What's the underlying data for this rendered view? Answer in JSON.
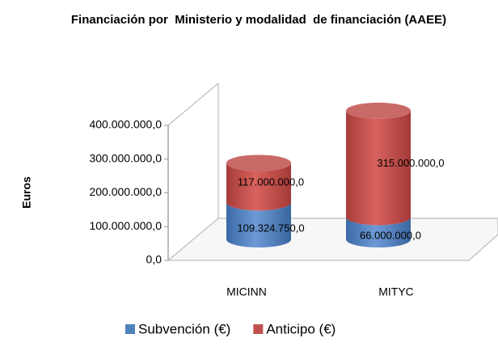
{
  "chart_data": {
    "type": "bar3d-stacked-cylinder",
    "title": "Financiación por  Ministerio y modalidad  de financiación (AAEE)",
    "y_label": "Euros",
    "categories": [
      "MICINN",
      "MITYC"
    ],
    "series": [
      {
        "name": "Subvención (€)",
        "color": "#4f81bd",
        "values": [
          109324750,
          66000000
        ],
        "value_labels": [
          "109.324.750,0",
          "66.000.000,0"
        ]
      },
      {
        "name": "Anticipo (€)",
        "color": "#c0504d",
        "values": [
          117000000,
          315000000
        ],
        "value_labels": [
          "117.000.000,0",
          "315.000.000,0"
        ]
      }
    ],
    "ylim": [
      0,
      400000000
    ],
    "yticks": [
      {
        "value": 0,
        "label": "0,0"
      },
      {
        "value": 100000000,
        "label": "100.000.000,0"
      },
      {
        "value": 200000000,
        "label": "200.000.000,0"
      },
      {
        "value": 300000000,
        "label": "300.000.000,0"
      },
      {
        "value": 400000000,
        "label": "400.000.000,0"
      }
    ],
    "grid": false,
    "legend": "bottom"
  }
}
